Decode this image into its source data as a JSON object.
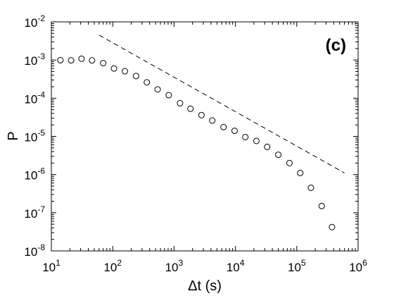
{
  "chart_data": {
    "type": "scatter",
    "xscale": "log",
    "yscale": "log",
    "xlabel": "Δt (s)",
    "ylabel": "P",
    "panel_label": "(c)",
    "xlim": [
      10,
      1000000
    ],
    "ylim": [
      1e-08,
      0.01
    ],
    "grid": false,
    "x_ticks": [
      {
        "mant": "10",
        "exp": "1",
        "value": 10
      },
      {
        "mant": "10",
        "exp": "2",
        "value": 100
      },
      {
        "mant": "10",
        "exp": "3",
        "value": 1000
      },
      {
        "mant": "10",
        "exp": "4",
        "value": 10000
      },
      {
        "mant": "10",
        "exp": "5",
        "value": 100000
      },
      {
        "mant": "10",
        "exp": "6",
        "value": 1000000
      }
    ],
    "y_ticks": [
      {
        "mant": "10",
        "exp": "-8",
        "value": 1e-08
      },
      {
        "mant": "10",
        "exp": "-7",
        "value": 1e-07
      },
      {
        "mant": "10",
        "exp": "-6",
        "value": 1e-06
      },
      {
        "mant": "10",
        "exp": "-5",
        "value": 1e-05
      },
      {
        "mant": "10",
        "exp": "-4",
        "value": 0.0001
      },
      {
        "mant": "10",
        "exp": "-3",
        "value": 0.001
      },
      {
        "mant": "10",
        "exp": "-2",
        "value": 0.01
      }
    ],
    "points": [
      {
        "x": 14,
        "y": 0.00099
      },
      {
        "x": 21,
        "y": 0.00098
      },
      {
        "x": 31,
        "y": 0.00108
      },
      {
        "x": 46,
        "y": 0.00098
      },
      {
        "x": 70,
        "y": 0.00083
      },
      {
        "x": 105,
        "y": 0.0006
      },
      {
        "x": 158,
        "y": 0.00051
      },
      {
        "x": 240,
        "y": 0.00038
      },
      {
        "x": 360,
        "y": 0.00026
      },
      {
        "x": 540,
        "y": 0.00017
      },
      {
        "x": 820,
        "y": 0.00012
      },
      {
        "x": 1250,
        "y": 7.4e-05
      },
      {
        "x": 1850,
        "y": 5.3e-05
      },
      {
        "x": 2800,
        "y": 3.6e-05
      },
      {
        "x": 4200,
        "y": 2.6e-05
      },
      {
        "x": 6400,
        "y": 1.75e-05
      },
      {
        "x": 9700,
        "y": 1.4e-05
      },
      {
        "x": 14500,
        "y": 9.6e-06
      },
      {
        "x": 22000,
        "y": 7.6e-06
      },
      {
        "x": 33000,
        "y": 5.3e-06
      },
      {
        "x": 50000,
        "y": 3.3e-06
      },
      {
        "x": 76000,
        "y": 2e-06
      },
      {
        "x": 114000,
        "y": 1.1e-06
      },
      {
        "x": 170000,
        "y": 4.5e-07
      },
      {
        "x": 255000,
        "y": 1.5e-07
      },
      {
        "x": 375000,
        "y": 4.2e-08
      }
    ],
    "reference_line": {
      "style": "dashed",
      "from": {
        "x": 60,
        "y": 0.0045
      },
      "to": {
        "x": 600000,
        "y": 1.1e-06
      }
    }
  }
}
